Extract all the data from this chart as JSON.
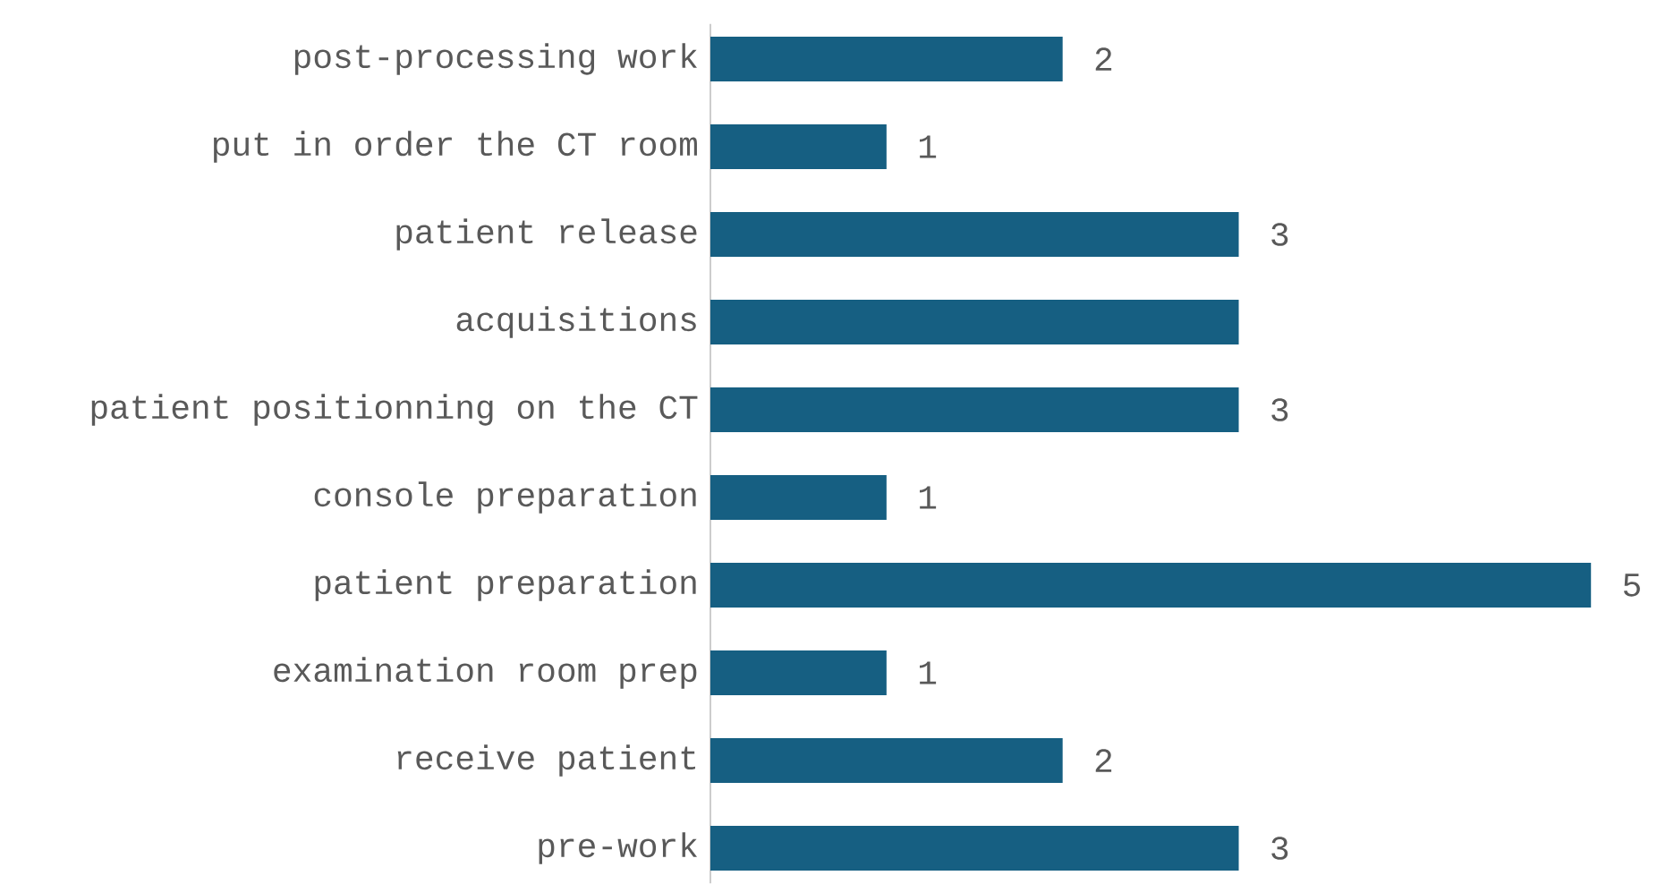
{
  "chart_data": {
    "type": "bar",
    "orientation": "horizontal",
    "categories": [
      "post-processing work",
      "put in order the CT room",
      "patient release",
      "acquisitions",
      "patient positionning on the CT",
      "console preparation",
      "patient preparation",
      "examination room prep",
      "receive patient",
      "pre-work"
    ],
    "values": [
      2,
      1,
      3,
      3,
      3,
      1,
      5,
      1,
      2,
      3
    ],
    "value_labels": [
      "2",
      "1",
      "3",
      null,
      "3",
      "1",
      "5",
      "1",
      "2",
      "3"
    ],
    "color": "#165f82"
  }
}
